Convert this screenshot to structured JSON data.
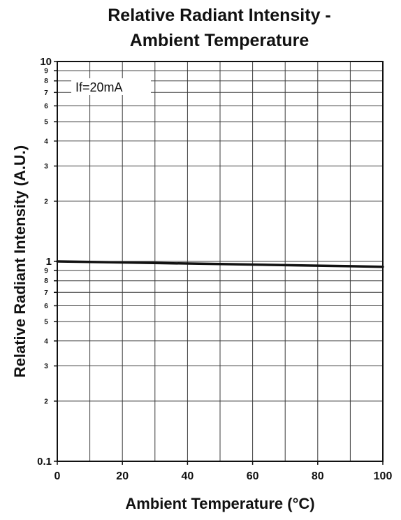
{
  "chart_data": {
    "type": "line",
    "title_lines": [
      "Relative Radiant Intensity -",
      "Ambient Temperature"
    ],
    "xlabel": "Ambient Temperature (°C)",
    "ylabel": "Relative Radiant Intensity (A.U.)",
    "xlim": [
      0,
      100
    ],
    "ylim": [
      0.1,
      10
    ],
    "yscale": "log",
    "grid": true,
    "x_ticks": [
      0,
      20,
      40,
      60,
      80,
      100
    ],
    "x_tick_labels": [
      "0",
      "20",
      "40",
      "60",
      "80",
      "100"
    ],
    "y_major_ticks": [
      {
        "value": 10,
        "label": "10"
      },
      {
        "value": 1,
        "label": "1"
      },
      {
        "value": 0.1,
        "label": "0.1"
      }
    ],
    "y_minor_ticks": [
      {
        "value": 9,
        "label": "9"
      },
      {
        "value": 8,
        "label": "8"
      },
      {
        "value": 7,
        "label": "7"
      },
      {
        "value": 6,
        "label": "6"
      },
      {
        "value": 5,
        "label": "5"
      },
      {
        "value": 4,
        "label": "4"
      },
      {
        "value": 3,
        "label": "3"
      },
      {
        "value": 2,
        "label": "2"
      },
      {
        "value": 0.9,
        "label": "9"
      },
      {
        "value": 0.8,
        "label": "8"
      },
      {
        "value": 0.7,
        "label": "7"
      },
      {
        "value": 0.6,
        "label": "6"
      },
      {
        "value": 0.5,
        "label": "5"
      },
      {
        "value": 0.4,
        "label": "4"
      },
      {
        "value": 0.3,
        "label": "3"
      },
      {
        "value": 0.2,
        "label": "2"
      }
    ],
    "annotation": "If=20mA",
    "series": [
      {
        "x": [
          0,
          25,
          50,
          75,
          100
        ],
        "y": [
          1.0,
          0.985,
          0.97,
          0.955,
          0.94
        ]
      }
    ]
  }
}
